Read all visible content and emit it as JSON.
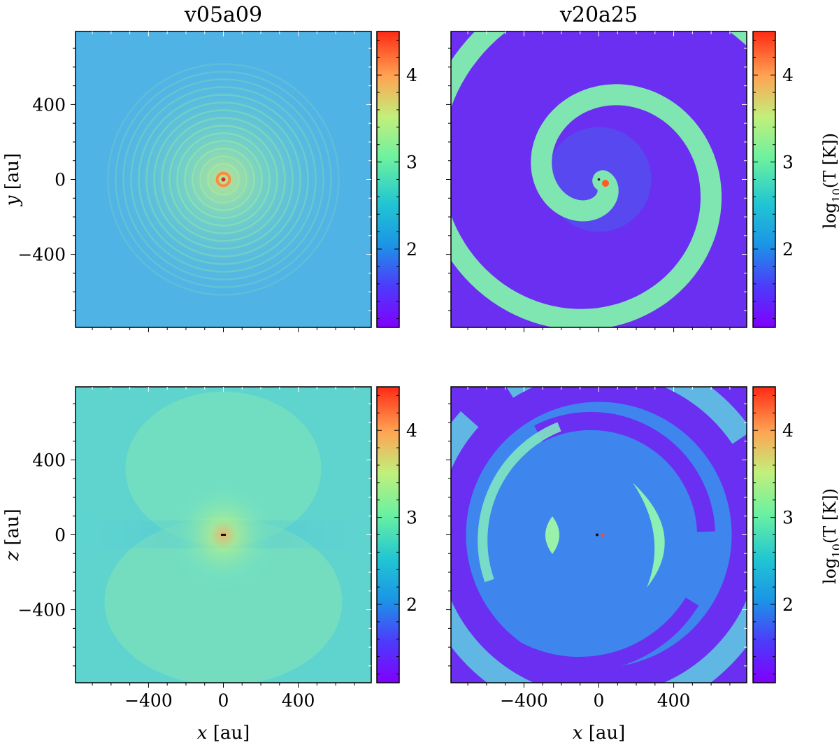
{
  "chart_data": {
    "type": "heatmap",
    "colormap": "rainbow",
    "colorbar": {
      "label_main": "log",
      "label_sub": "10",
      "label_rest": "(T [K])",
      "ticks": [
        2,
        3,
        4
      ],
      "range": [
        1.1,
        4.5
      ]
    },
    "panels": [
      {
        "id": "v05a09-xy",
        "title": "v05a09",
        "plane": "xy",
        "xlabel_var": "x",
        "xlabel_unit": "[au]",
        "ylabel_var": "y",
        "ylabel_unit": "[au]",
        "xlim": [
          -790,
          790
        ],
        "ylim": [
          -790,
          790
        ],
        "xticks": [
          -400,
          0,
          400
        ],
        "yticks": [
          -400,
          0,
          400
        ],
        "background_log10T": 2.0,
        "structure": "tightly wound concentric rings, hot core ~4.2 at origin",
        "show_xlabels": false,
        "show_ylabels": true,
        "show_cbar_label": false
      },
      {
        "id": "v20a25-xy",
        "title": "v20a25",
        "plane": "xy",
        "xlabel_var": "x",
        "xlabel_unit": "[au]",
        "ylabel_var": "y",
        "ylabel_unit": "[au]",
        "xlim": [
          -790,
          790
        ],
        "ylim": [
          -790,
          790
        ],
        "xticks": [
          -400,
          0,
          400
        ],
        "yticks": [
          -400,
          0,
          400
        ],
        "background_log10T": 1.2,
        "arm_log10T": 2.5,
        "structure": "single open spiral arm",
        "show_xlabels": false,
        "show_ylabels": false,
        "show_cbar_label": true
      },
      {
        "id": "v05a09-xz",
        "title": "",
        "plane": "xz",
        "xlabel_var": "x",
        "xlabel_unit": "[au]",
        "ylabel_var": "z",
        "ylabel_unit": "[au]",
        "xlim": [
          -790,
          790
        ],
        "ylim": [
          -790,
          790
        ],
        "xticks": [
          -400,
          0,
          400
        ],
        "yticks": [
          -400,
          0,
          400
        ],
        "background_log10T": 2.35,
        "structure": "smooth warm halo, hot core at origin",
        "show_xlabels": true,
        "show_ylabels": true,
        "show_cbar_label": false
      },
      {
        "id": "v20a25-xz",
        "title": "",
        "plane": "xz",
        "xlabel_var": "x",
        "xlabel_unit": "[au]",
        "ylabel_var": "z",
        "ylabel_unit": "[au]",
        "xlim": [
          -790,
          790
        ],
        "ylim": [
          -790,
          790
        ],
        "xticks": [
          -400,
          0,
          400
        ],
        "yticks": [
          -400,
          0,
          400
        ],
        "background_log10T": 1.2,
        "arm_log10T": 2.5,
        "structure": "nested shell arcs",
        "show_xlabels": true,
        "show_ylabels": false,
        "show_cbar_label": true
      }
    ]
  }
}
